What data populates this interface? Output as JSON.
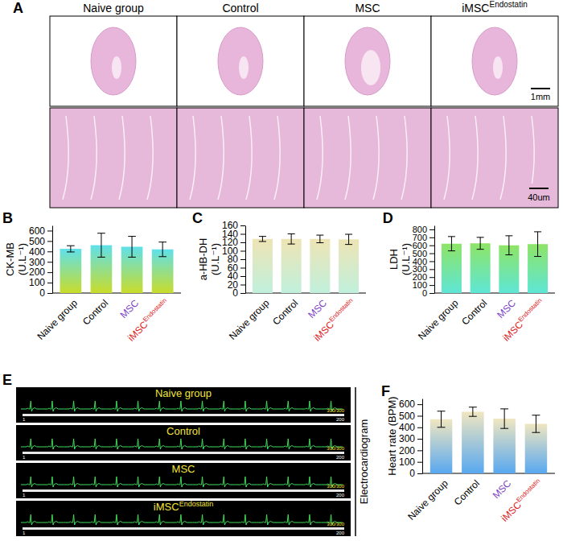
{
  "chart_data": [
    {
      "type": "bar",
      "panel": "B",
      "y_label": [
        "CK-MB",
        "(U.L⁻¹)"
      ],
      "categories": [
        "Naive group",
        "Control",
        "MSC",
        "iMSCEndostatin"
      ],
      "values": [
        425,
        460,
        445,
        420
      ],
      "errors": [
        30,
        115,
        100,
        70
      ],
      "color": "#5fe0ea",
      "ylim": [
        0,
        650
      ],
      "yticks": [
        0,
        100,
        200,
        300,
        400,
        500,
        600
      ]
    },
    {
      "type": "bar",
      "panel": "C",
      "y_label": [
        "a-HB-DH",
        "(U.L⁻¹)"
      ],
      "categories": [
        "Naive group",
        "Control",
        "MSC",
        "iMSCEndostatin"
      ],
      "values": [
        128,
        128,
        128,
        127
      ],
      "errors": [
        6,
        12,
        9,
        12
      ],
      "color": "#eee4b4",
      "ylim": [
        0,
        160
      ],
      "yticks": [
        0,
        20,
        40,
        60,
        80,
        100,
        120,
        140,
        160
      ]
    },
    {
      "type": "bar",
      "panel": "D",
      "y_label": [
        "LDH",
        "(U.L⁻¹)"
      ],
      "categories": [
        "Naive group",
        "Control",
        "MSC",
        "iMSCEndostatin"
      ],
      "values": [
        620,
        625,
        600,
        615
      ],
      "errors": [
        90,
        75,
        120,
        155
      ],
      "color": "#8ee466",
      "ylim": [
        0,
        850
      ],
      "yticks": [
        0,
        100,
        200,
        300,
        400,
        500,
        600,
        700,
        800
      ]
    },
    {
      "type": "bar",
      "panel": "F",
      "y_label": [
        "Heart rate (BPM)"
      ],
      "categories": [
        "Naive group",
        "Control",
        "MSC",
        "iMSCEndostatin"
      ],
      "values": [
        470,
        535,
        475,
        430
      ],
      "errors": [
        70,
        40,
        85,
        75
      ],
      "color": "#f0e6c0",
      "ylim": [
        0,
        650
      ],
      "yticks": [
        0,
        100,
        200,
        300,
        400,
        500,
        600
      ]
    }
  ],
  "panel_a": {
    "panel": "A",
    "columns": [
      "Naive group",
      "Control",
      "MSC",
      "iMSCEndostatin"
    ],
    "scale_bars": [
      "1mm",
      "40um"
    ]
  },
  "panel_e": {
    "panel": "E",
    "title": "Electrocardiogram",
    "groups": [
      "Naive group",
      "Control",
      "MSC",
      "iMSCEndostatin"
    ],
    "counter_start": "1",
    "counter_progress": "300/300",
    "counter_end": "200"
  }
}
